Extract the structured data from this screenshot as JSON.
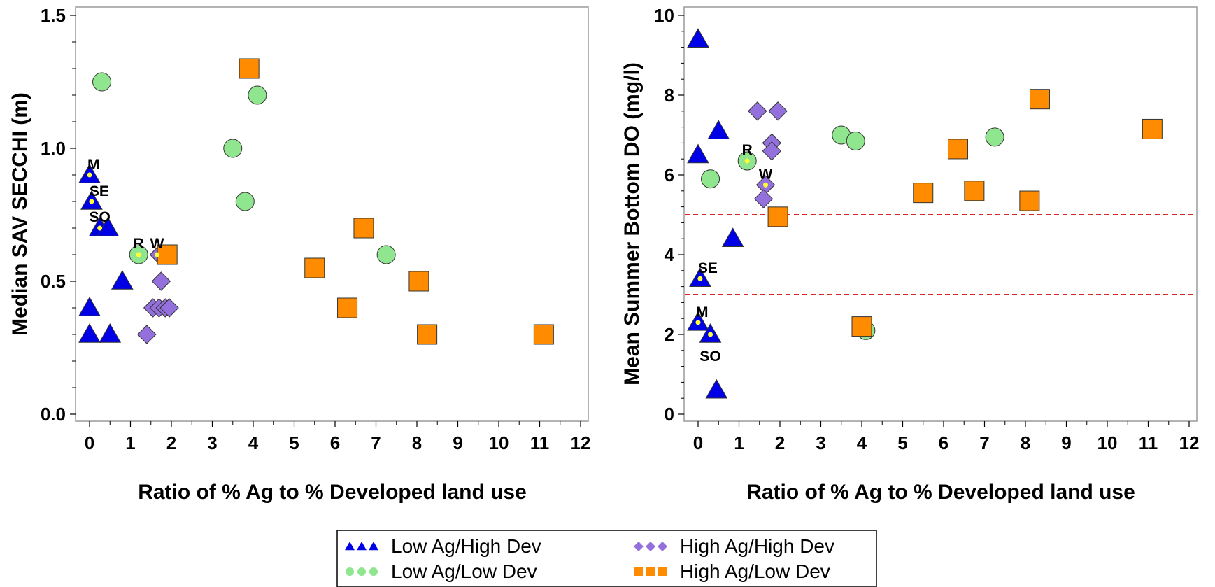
{
  "colors": {
    "low_ag_high_dev": "#0000e6",
    "low_ag_low_dev": "#8fe68f",
    "high_ag_high_dev": "#9370db",
    "high_ag_low_dev": "#ff8c00",
    "label_dot": "#ffff33",
    "reference_line": "#d62728"
  },
  "legend": {
    "items": [
      {
        "key": "low_ag_high_dev",
        "label": "Low Ag/High Dev",
        "marker": "triangle"
      },
      {
        "key": "high_ag_high_dev",
        "label": "High Ag/High Dev",
        "marker": "diamond"
      },
      {
        "key": "low_ag_low_dev",
        "label": "Low Ag/Low Dev",
        "marker": "circle"
      },
      {
        "key": "high_ag_low_dev",
        "label": "High Ag/Low Dev",
        "marker": "square"
      }
    ]
  },
  "chart_data": [
    {
      "type": "scatter",
      "title": "",
      "xlabel": "Ratio of % Ag to % Developed land use",
      "ylabel": "Median SAV SECCHI (m)",
      "xlim": [
        0,
        12
      ],
      "ylim": [
        0,
        1.5
      ],
      "xticks": [
        "0",
        "1",
        "2",
        "3",
        "4",
        "5",
        "6",
        "7",
        "8",
        "9",
        "10",
        "11",
        "12"
      ],
      "yticks": [
        "0.0",
        "0.5",
        "1.0",
        "1.5"
      ],
      "grid": false,
      "series": [
        {
          "key": "low_ag_high_dev",
          "marker": "triangle",
          "points": [
            [
              0,
              0.9
            ],
            [
              0.05,
              0.8
            ],
            [
              0.25,
              0.7
            ],
            [
              0.45,
              0.7
            ],
            [
              0.8,
              0.5
            ],
            [
              0,
              0.4
            ],
            [
              0,
              0.3
            ],
            [
              0.5,
              0.3
            ]
          ]
        },
        {
          "key": "low_ag_low_dev",
          "marker": "circle",
          "points": [
            [
              0.3,
              1.25
            ],
            [
              1.2,
              0.6
            ],
            [
              3.5,
              1.0
            ],
            [
              4.1,
              1.2
            ],
            [
              3.8,
              0.8
            ],
            [
              7.25,
              0.6
            ]
          ]
        },
        {
          "key": "high_ag_high_dev",
          "marker": "diamond",
          "points": [
            [
              1.7,
              0.6
            ],
            [
              1.75,
              0.5
            ],
            [
              1.55,
              0.4
            ],
            [
              1.7,
              0.4
            ],
            [
              1.85,
              0.4
            ],
            [
              1.95,
              0.4
            ],
            [
              1.4,
              0.3
            ]
          ]
        },
        {
          "key": "high_ag_low_dev",
          "marker": "square",
          "points": [
            [
              3.9,
              1.3
            ],
            [
              1.9,
              0.6
            ],
            [
              6.7,
              0.7
            ],
            [
              5.5,
              0.55
            ],
            [
              6.3,
              0.4
            ],
            [
              8.05,
              0.5
            ],
            [
              8.25,
              0.3
            ],
            [
              11.1,
              0.3
            ]
          ]
        }
      ],
      "annotations": [
        {
          "text": "M",
          "x": 0,
          "y": 0.9,
          "pos": "above-right"
        },
        {
          "text": "SE",
          "x": 0.05,
          "y": 0.8,
          "pos": "above-right"
        },
        {
          "text": "SO",
          "x": 0.25,
          "y": 0.7,
          "pos": "above"
        },
        {
          "text": "R",
          "x": 1.2,
          "y": 0.6,
          "pos": "above"
        },
        {
          "text": "W",
          "x": 1.65,
          "y": 0.6,
          "pos": "above"
        }
      ],
      "reference_lines": []
    },
    {
      "type": "scatter",
      "title": "",
      "xlabel": "Ratio of % Ag to % Developed land use",
      "ylabel": "Mean Summer Bottom DO (mg/l)",
      "xlim": [
        0,
        12
      ],
      "ylim": [
        0,
        10
      ],
      "xticks": [
        "0",
        "1",
        "2",
        "3",
        "4",
        "5",
        "6",
        "7",
        "8",
        "9",
        "10",
        "11",
        "12"
      ],
      "yticks": [
        "0",
        "2",
        "4",
        "6",
        "8",
        "10"
      ],
      "grid": false,
      "series": [
        {
          "key": "low_ag_high_dev",
          "marker": "triangle",
          "points": [
            [
              0,
              9.4
            ],
            [
              0,
              6.5
            ],
            [
              0.5,
              7.1
            ],
            [
              0.85,
              4.4
            ],
            [
              0.05,
              3.4
            ],
            [
              0,
              2.3
            ],
            [
              0.3,
              2.0
            ],
            [
              0.45,
              0.6
            ]
          ]
        },
        {
          "key": "low_ag_low_dev",
          "marker": "circle",
          "points": [
            [
              0.3,
              5.9
            ],
            [
              1.2,
              6.35
            ],
            [
              3.5,
              7.0
            ],
            [
              3.85,
              6.85
            ],
            [
              7.25,
              6.95
            ],
            [
              4.1,
              2.1
            ]
          ]
        },
        {
          "key": "high_ag_high_dev",
          "marker": "diamond",
          "points": [
            [
              1.45,
              7.6
            ],
            [
              1.95,
              7.6
            ],
            [
              1.8,
              6.8
            ],
            [
              1.8,
              6.6
            ],
            [
              1.65,
              5.75
            ],
            [
              1.6,
              5.4
            ]
          ]
        },
        {
          "key": "high_ag_low_dev",
          "marker": "square",
          "points": [
            [
              8.35,
              7.9
            ],
            [
              11.1,
              7.15
            ],
            [
              6.35,
              6.65
            ],
            [
              5.5,
              5.55
            ],
            [
              6.75,
              5.6
            ],
            [
              8.1,
              5.35
            ],
            [
              1.95,
              4.95
            ],
            [
              4.0,
              2.2
            ]
          ]
        }
      ],
      "annotations": [
        {
          "text": "R",
          "x": 1.2,
          "y": 6.35,
          "pos": "above"
        },
        {
          "text": "W",
          "x": 1.65,
          "y": 5.75,
          "pos": "above"
        },
        {
          "text": "SE",
          "x": 0.05,
          "y": 3.4,
          "pos": "above-right"
        },
        {
          "text": "M",
          "x": 0,
          "y": 2.3,
          "pos": "above-right"
        },
        {
          "text": "SO",
          "x": 0.3,
          "y": 2.0,
          "pos": "below"
        }
      ],
      "reference_lines": [
        5,
        3
      ]
    }
  ]
}
